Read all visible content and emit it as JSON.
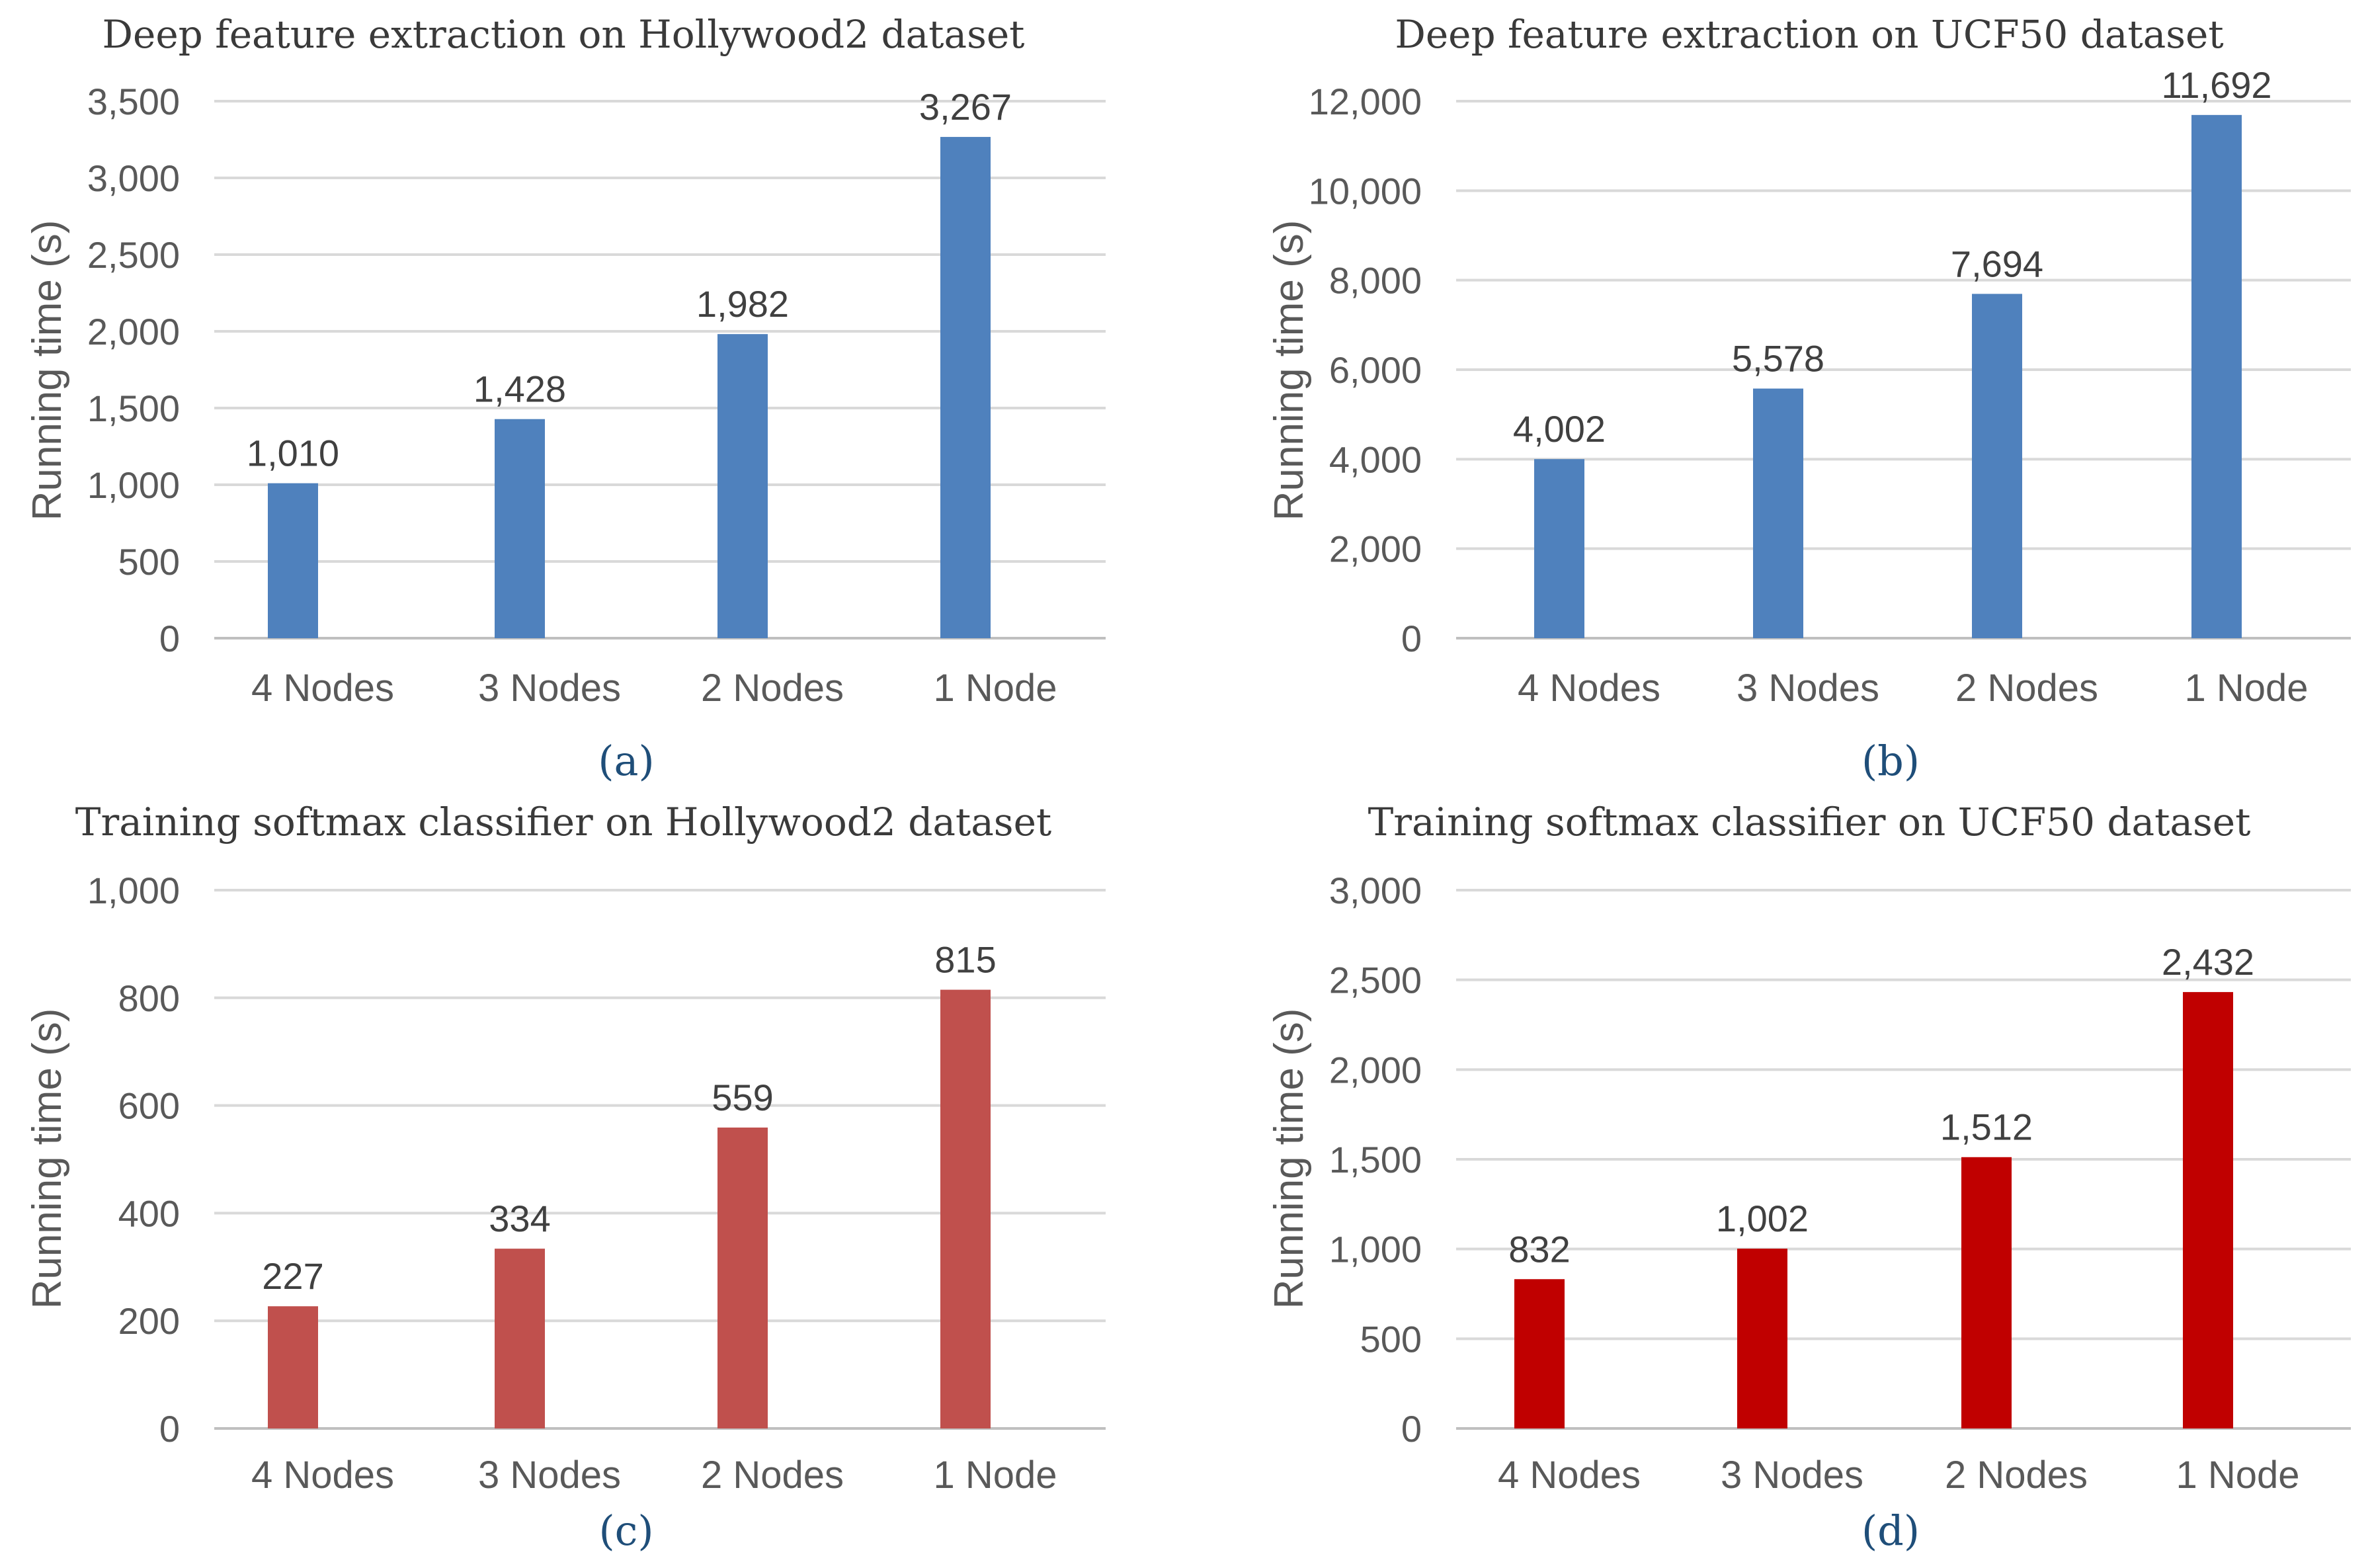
{
  "chart_data": [
    {
      "type": "bar",
      "title": "Deep feature extraction on Hollywood2 dataset",
      "caption": "(a)",
      "ylabel": "Running time (s)",
      "categories": [
        "4 Nodes",
        "3 Nodes",
        "2 Nodes",
        "1 Node"
      ],
      "values": [
        1010,
        1428,
        1982,
        3267
      ],
      "value_labels": [
        "1,010",
        "1,428",
        "1,982",
        "3,267"
      ],
      "ylim": [
        0,
        3500
      ],
      "yticks": [
        0,
        500,
        1000,
        1500,
        2000,
        2500,
        3000,
        3500
      ],
      "ytick_labels": [
        "0",
        "500",
        "1,000",
        "1,500",
        "2,000",
        "2,500",
        "3,000",
        "3,500"
      ],
      "color": "#4f81bd",
      "grid": true
    },
    {
      "type": "bar",
      "title": "Deep feature extraction on UCF50 dataset",
      "caption": "(b)",
      "ylabel": "Running time (s)",
      "categories": [
        "4 Nodes",
        "3 Nodes",
        "2 Nodes",
        "1 Node"
      ],
      "values": [
        4002,
        5578,
        7694,
        11692
      ],
      "value_labels": [
        "4,002",
        "5,578",
        "7,694",
        "11,692"
      ],
      "ylim": [
        0,
        12000
      ],
      "yticks": [
        0,
        2000,
        4000,
        6000,
        8000,
        10000,
        12000
      ],
      "ytick_labels": [
        "0",
        "2,000",
        "4,000",
        "6,000",
        "8,000",
        "10,000",
        "12,000"
      ],
      "color": "#4f81bd",
      "grid": true
    },
    {
      "type": "bar",
      "title": "Training softmax classifier on Hollywood2 dataset",
      "caption": "(c)",
      "ylabel": "Running time (s)",
      "categories": [
        "4 Nodes",
        "3 Nodes",
        "2 Nodes",
        "1 Node"
      ],
      "values": [
        227,
        334,
        559,
        815
      ],
      "value_labels": [
        "227",
        "334",
        "559",
        "815"
      ],
      "ylim": [
        0,
        1000
      ],
      "yticks": [
        0,
        200,
        400,
        600,
        800,
        1000
      ],
      "ytick_labels": [
        "0",
        "200",
        "400",
        "600",
        "800",
        "1,000"
      ],
      "color": "#c0504d",
      "grid": true
    },
    {
      "type": "bar",
      "title": "Training softmax classifier on UCF50 dataset",
      "caption": "(d)",
      "ylabel": "Running time (s)",
      "categories": [
        "4 Nodes",
        "3 Nodes",
        "2 Nodes",
        "1 Node"
      ],
      "values": [
        832,
        1002,
        1512,
        2432
      ],
      "value_labels": [
        "832",
        "1,002",
        "1,512",
        "2,432"
      ],
      "ylim": [
        0,
        3000
      ],
      "yticks": [
        0,
        500,
        1000,
        1500,
        2000,
        2500,
        3000
      ],
      "ytick_labels": [
        "0",
        "500",
        "1,000",
        "1,500",
        "2,000",
        "2,500",
        "3,000"
      ],
      "color": "#c00000",
      "grid": true
    }
  ]
}
